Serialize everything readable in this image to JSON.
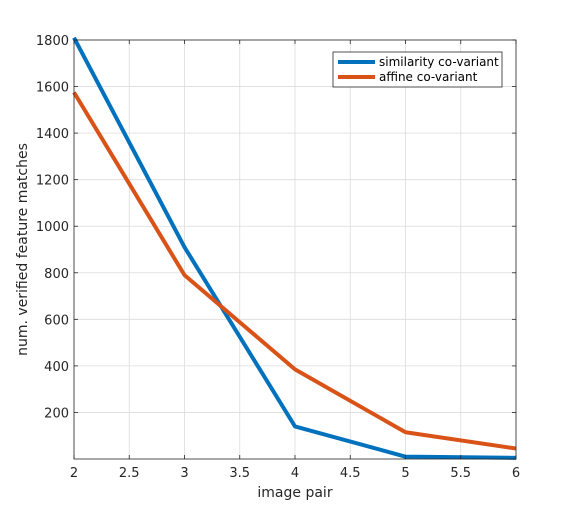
{
  "chart_data": {
    "type": "line",
    "xlabel": "image pair",
    "ylabel": "num. verified feature matches",
    "xlim": [
      2,
      6
    ],
    "ylim": [
      0,
      1800
    ],
    "x_ticks": [
      2,
      2.5,
      3,
      3.5,
      4,
      4.5,
      5,
      5.5,
      6
    ],
    "x_tick_labels": [
      "2",
      "2.5",
      "3",
      "3.5",
      "4",
      "4.5",
      "5",
      "5.5",
      "6"
    ],
    "y_ticks": [
      200,
      400,
      600,
      800,
      1000,
      1200,
      1400,
      1600,
      1800
    ],
    "y_tick_labels": [
      "200",
      "400",
      "600",
      "800",
      "1000",
      "1200",
      "1400",
      "1600",
      "1800"
    ],
    "grid": true,
    "legend_position": "top-right",
    "x": [
      2,
      3,
      4,
      5,
      6
    ],
    "series": [
      {
        "name": "similarity co-variant",
        "color": "#0072BD",
        "values": [
          1810,
          910,
          140,
          10,
          5
        ]
      },
      {
        "name": "affine co-variant",
        "color": "#D95319",
        "values": [
          1575,
          790,
          385,
          115,
          45
        ]
      }
    ]
  }
}
